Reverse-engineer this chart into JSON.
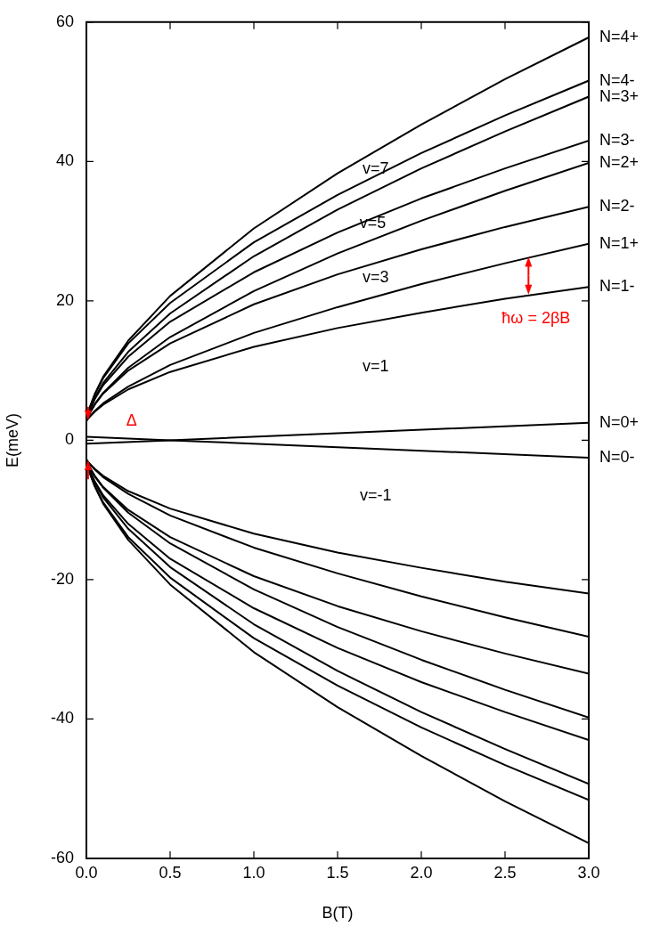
{
  "chart_data": {
    "type": "line",
    "xlabel": "B(T)",
    "ylabel": "E(meV)",
    "x": [
      0,
      0.02,
      0.05,
      0.1,
      0.25,
      0.5,
      1,
      1.5,
      2,
      2.5,
      3
    ],
    "series": [
      {
        "name": "N=4+",
        "color": "#000000",
        "values": [
          2.8,
          4.7,
          6.6,
          9.1,
          14.3,
          20.7,
          30.4,
          38.3,
          45.3,
          51.8,
          57.8
        ]
      },
      {
        "name": "N=4-",
        "color": "#000000",
        "values": [
          2.8,
          4.7,
          6.6,
          8.9,
          13.9,
          19.7,
          28.4,
          35.2,
          41.2,
          46.6,
          51.6
        ]
      },
      {
        "name": "N=3+",
        "color": "#000000",
        "values": [
          2.8,
          4.4,
          6.1,
          8.2,
          12.7,
          18.2,
          26.4,
          33.1,
          39.0,
          44.3,
          49.3
        ]
      },
      {
        "name": "N=3-",
        "color": "#000000",
        "values": [
          2.8,
          4.3,
          5.9,
          7.9,
          12.0,
          17.0,
          24.1,
          29.8,
          34.7,
          39.0,
          43.0
        ]
      },
      {
        "name": "N=2+",
        "color": "#000000",
        "values": [
          2.8,
          3.9,
          5.2,
          6.8,
          10.4,
          14.8,
          21.4,
          26.8,
          31.5,
          35.8,
          39.8
        ]
      },
      {
        "name": "N=2-",
        "color": "#000000",
        "values": [
          2.8,
          3.9,
          5.1,
          6.7,
          10.0,
          13.9,
          19.5,
          23.8,
          27.4,
          30.6,
          33.5
        ]
      },
      {
        "name": "N=1+",
        "color": "#000000",
        "values": [
          2.8,
          3.4,
          4.2,
          5.3,
          7.7,
          10.8,
          15.4,
          19.1,
          22.4,
          25.4,
          28.2
        ]
      },
      {
        "name": "N=1-",
        "color": "#000000",
        "values": [
          2.8,
          3.4,
          4.1,
          5.1,
          7.3,
          9.8,
          13.4,
          16.1,
          18.3,
          20.3,
          22.0
        ]
      },
      {
        "name": "N=0+",
        "color": "#000000",
        "x": [
          0,
          0.5,
          1.5,
          3
        ],
        "values": [
          -0.5,
          0,
          1,
          2.5
        ]
      },
      {
        "name": "N=0-",
        "color": "#000000",
        "x": [
          0,
          0.5,
          1.5,
          3
        ],
        "values": [
          0.5,
          0,
          -1,
          -2.5
        ]
      },
      {
        "color": "#000000",
        "values": [
          -2.8,
          -3.4,
          -4.1,
          -5.1,
          -7.3,
          -9.8,
          -13.4,
          -16.1,
          -18.3,
          -20.3,
          -22.0
        ]
      },
      {
        "color": "#000000",
        "values": [
          -2.8,
          -3.4,
          -4.2,
          -5.3,
          -7.7,
          -10.8,
          -15.4,
          -19.1,
          -22.4,
          -25.4,
          -28.2
        ]
      },
      {
        "color": "#000000",
        "values": [
          -2.8,
          -3.9,
          -5.1,
          -6.7,
          -10.0,
          -13.9,
          -19.5,
          -23.8,
          -27.4,
          -30.6,
          -33.5
        ]
      },
      {
        "color": "#000000",
        "values": [
          -2.8,
          -3.9,
          -5.2,
          -6.8,
          -10.4,
          -14.8,
          -21.4,
          -26.8,
          -31.5,
          -35.8,
          -39.8
        ]
      },
      {
        "color": "#000000",
        "values": [
          -2.8,
          -4.3,
          -5.9,
          -7.9,
          -12.0,
          -17.0,
          -24.1,
          -29.8,
          -34.7,
          -39.0,
          -43.0
        ]
      },
      {
        "color": "#000000",
        "values": [
          -2.8,
          -4.4,
          -6.1,
          -8.2,
          -12.7,
          -18.2,
          -26.4,
          -33.1,
          -39.0,
          -44.3,
          -49.3
        ]
      },
      {
        "color": "#000000",
        "values": [
          -2.8,
          -4.7,
          -6.6,
          -8.9,
          -13.9,
          -19.7,
          -28.4,
          -35.2,
          -41.2,
          -46.6,
          -51.6
        ]
      },
      {
        "color": "#000000",
        "values": [
          -2.8,
          -4.7,
          -6.6,
          -9.1,
          -14.3,
          -20.7,
          -30.4,
          -38.3,
          -45.3,
          -51.8,
          -57.8
        ]
      }
    ],
    "xlim": [
      0,
      3
    ],
    "xticks": [
      {
        "value": 0,
        "label": "0.0"
      },
      {
        "value": 0.5,
        "label": "0.5"
      },
      {
        "value": 1,
        "label": "1.0"
      },
      {
        "value": 1.5,
        "label": "1.5"
      },
      {
        "value": 2,
        "label": "2.0"
      },
      {
        "value": 2.5,
        "label": "2.5"
      },
      {
        "value": 3,
        "label": "3.0"
      }
    ],
    "ylim": [
      -60,
      60
    ],
    "yticks": [
      -60,
      -40,
      -20,
      0,
      20,
      40,
      60
    ],
    "grid": false,
    "legend": "right",
    "annotations": [
      "v=7",
      "v=5",
      "v=3",
      "v=1",
      "v=-1",
      "Δ",
      "ħω = 2βB"
    ]
  }
}
